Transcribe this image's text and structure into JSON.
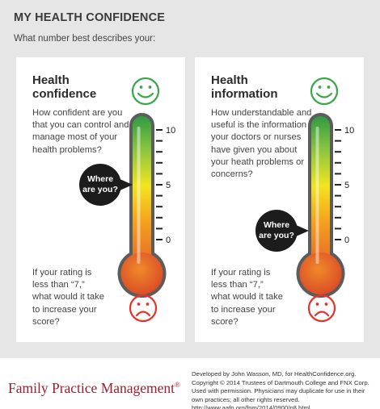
{
  "header": {
    "title": "MY HEALTH CONFIDENCE",
    "subtitle": "What number best describes your:"
  },
  "cards": [
    {
      "title_line1": "Health",
      "title_line2": "confidence",
      "question": "How confident are you that you can control and manage most of your health problems?",
      "bubble_line1": "Where",
      "bubble_line2": "are you?",
      "followup": "If your rating is less than “7,” what would it take to increase your score?",
      "scale": [
        "10",
        "5",
        "0"
      ]
    },
    {
      "title_line1": "Health",
      "title_line2": "information",
      "question": "How understandable and useful is the information your doctors or nurses have given you about your heath problems or concerns?",
      "bubble_line1": "Where",
      "bubble_line2": "are you?",
      "followup": "If your rating is less than “7,” what would it take to increase your score?",
      "scale": [
        "10",
        "5",
        "0"
      ]
    }
  ],
  "footer": {
    "brand": "Family Practice Management",
    "registered": "®",
    "credits": "Developed by John Wasson, MD, for HealthConfidence.org. Copyright © 2014 Trustees of Dartmouth College and FNX Corp. Used with permission. Physicians may duplicate for use in their own practices; all other rights reserved. http://www.aafp.org/fpm/2014/0900/p8.html."
  },
  "colors": {
    "happy_face": "#3aa64a",
    "sad_face": "#e5332a",
    "brand": "#9c1f2e",
    "bubble": "#1c1c1c"
  },
  "icons": [
    "smiley-face-icon",
    "sad-face-icon",
    "thermometer-icon",
    "speech-bubble-icon"
  ]
}
